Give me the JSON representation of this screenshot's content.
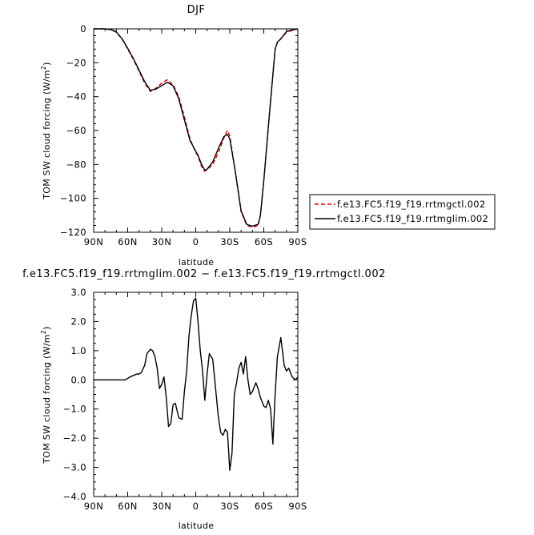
{
  "chart_data": [
    {
      "type": "line",
      "title": "DJF",
      "xlabel": "latitude",
      "ylabel": "TOM SW cloud forcing (W/m",
      "ylabel_sup": "2",
      "ylabel_tail": ")",
      "xlim": [
        90,
        -90
      ],
      "ylim": [
        -120,
        0
      ],
      "xticks": [
        90,
        60,
        30,
        0,
        -30,
        -60,
        -90
      ],
      "xtick_labels": [
        "90N",
        "60N",
        "30N",
        "0",
        "30S",
        "60S",
        "90S"
      ],
      "yticks": [
        0,
        -20,
        -40,
        -60,
        -80,
        -100,
        -120
      ],
      "ytick_labels": [
        "0",
        "−20",
        "−40",
        "−60",
        "−80",
        "−100",
        "−120"
      ],
      "legend_position": "right",
      "series": [
        {
          "name": "f.e13.FC5.f19_f19.rrtmgctl.002",
          "color": "#cc0000",
          "dash": "dashed",
          "x": [
            90,
            85,
            80,
            75,
            70,
            65,
            60,
            55,
            50,
            45,
            40,
            35,
            30,
            25,
            20,
            15,
            10,
            5,
            0,
            -2,
            -5,
            -8,
            -10,
            -15,
            -20,
            -25,
            -28,
            -30,
            -35,
            -40,
            -45,
            -50,
            -55,
            -57,
            -60,
            -65,
            -70,
            -72,
            -75,
            -80,
            -85,
            -90
          ],
          "y": [
            0,
            0,
            0,
            -0.5,
            -2,
            -6,
            -12,
            -18,
            -25,
            -32,
            -37,
            -35,
            -32,
            -30,
            -33,
            -40,
            -52,
            -65,
            -73,
            -75,
            -81,
            -84,
            -83,
            -80,
            -73,
            -64,
            -60,
            -63,
            -85,
            -108,
            -116,
            -117,
            -116,
            -110,
            -90,
            -50,
            -12,
            -8,
            -6,
            -2,
            -1,
            0
          ]
        },
        {
          "name": "f.e13.FC5.f19_f19.rrtmglim.002",
          "color": "#000000",
          "dash": "solid",
          "x": [
            90,
            85,
            80,
            75,
            70,
            65,
            60,
            55,
            50,
            45,
            40,
            35,
            30,
            25,
            20,
            15,
            10,
            5,
            0,
            -2,
            -5,
            -8,
            -10,
            -15,
            -20,
            -25,
            -28,
            -30,
            -35,
            -40,
            -45,
            -50,
            -55,
            -57,
            -60,
            -65,
            -70,
            -72,
            -75,
            -80,
            -85,
            -90
          ],
          "y": [
            0,
            0,
            0,
            -0.4,
            -1.8,
            -5.8,
            -11.5,
            -17.5,
            -24.3,
            -31.2,
            -36.3,
            -35.5,
            -33.5,
            -31.5,
            -33.6,
            -41.2,
            -53.7,
            -66,
            -72.2,
            -74.5,
            -79.8,
            -83.4,
            -82.8,
            -78.5,
            -70.5,
            -63.4,
            -62.3,
            -64.8,
            -84.6,
            -107.4,
            -115.4,
            -116.4,
            -115.3,
            -110.2,
            -89.5,
            -50.1,
            -11.9,
            -7.8,
            -5.9,
            -1.6,
            -0.6,
            0
          ]
        }
      ]
    },
    {
      "type": "line",
      "title": "f.e13.FC5.f19_f19.rrtmglim.002 − f.e13.FC5.f19_f19.rrtmgctl.002",
      "xlabel": "latitude",
      "ylabel": "TOM SW cloud forcing (W/m",
      "ylabel_sup": "2",
      "ylabel_tail": ")",
      "xlim": [
        90,
        -90
      ],
      "ylim": [
        -4,
        3
      ],
      "xticks": [
        90,
        60,
        30,
        0,
        -30,
        -60,
        -90
      ],
      "xtick_labels": [
        "90N",
        "60N",
        "30N",
        "0",
        "30S",
        "60S",
        "90S"
      ],
      "yticks": [
        3,
        2,
        1,
        0,
        -1,
        -2,
        -3,
        -4
      ],
      "ytick_labels": [
        "3.0",
        "2.0",
        "1.0",
        "0.0",
        "−1.0",
        "−2.0",
        "−3.0",
        "−4.0"
      ],
      "series": [
        {
          "color": "#000000",
          "dash": "solid",
          "x": [
            90,
            85,
            80,
            75,
            70,
            65,
            62,
            60,
            58,
            55,
            52,
            50,
            48,
            45,
            43,
            40,
            38,
            36,
            34,
            32,
            30,
            28,
            26,
            24,
            22,
            20,
            18,
            15,
            12,
            10,
            8,
            6,
            4,
            2,
            0,
            -2,
            -4,
            -6,
            -8,
            -10,
            -12,
            -15,
            -18,
            -20,
            -22,
            -24,
            -26,
            -28,
            -30,
            -32,
            -34,
            -36,
            -38,
            -40,
            -42,
            -44,
            -46,
            -48,
            -50,
            -53,
            -55,
            -57,
            -60,
            -62,
            -64,
            -66,
            -68,
            -70,
            -72,
            -75,
            -78,
            -80,
            -82,
            -85,
            -88,
            -90
          ],
          "y": [
            0,
            0,
            0,
            0,
            0,
            0,
            0,
            0.05,
            0.1,
            0.15,
            0.2,
            0.2,
            0.25,
            0.5,
            0.9,
            1.05,
            1.0,
            0.8,
            0.4,
            -0.3,
            -0.15,
            0.1,
            -0.6,
            -1.6,
            -1.5,
            -0.85,
            -0.8,
            -1.3,
            -1.35,
            -0.4,
            0.3,
            1.5,
            2.2,
            2.7,
            2.8,
            2.0,
            1.0,
            0.3,
            -0.7,
            0.2,
            0.9,
            0.7,
            -0.5,
            -1.3,
            -1.8,
            -1.9,
            -1.7,
            -1.8,
            -3.1,
            -2.5,
            -0.5,
            -0.1,
            0.4,
            0.6,
            0.2,
            0.8,
            0.0,
            -0.5,
            -0.4,
            -0.1,
            -0.3,
            -0.6,
            -0.9,
            -0.95,
            -0.7,
            -1.0,
            -2.2,
            -0.5,
            0.8,
            1.45,
            0.5,
            0.3,
            0.4,
            0.1,
            0.0,
            0.1
          ]
        }
      ]
    }
  ]
}
